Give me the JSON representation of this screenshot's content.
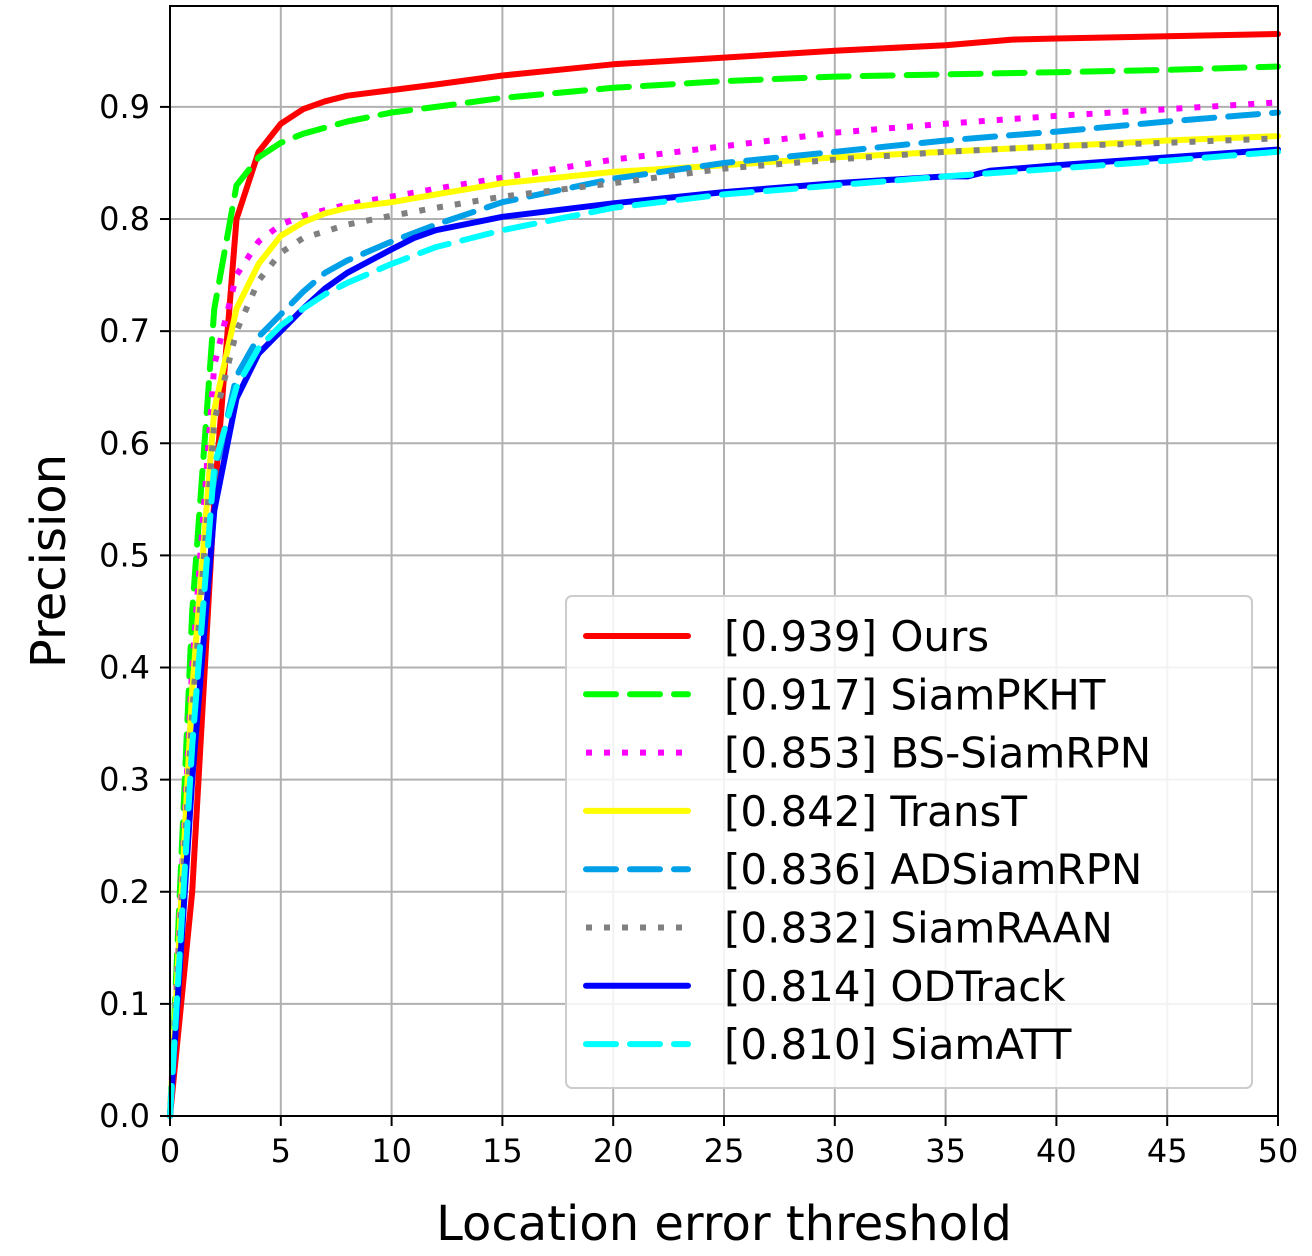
{
  "chart_data": {
    "type": "line",
    "title": "",
    "xlabel": "Location error threshold",
    "ylabel": "Precision",
    "xlim": [
      0,
      50
    ],
    "ylim": [
      0,
      0.99
    ],
    "x_ticks": [
      0,
      5,
      10,
      15,
      20,
      25,
      30,
      35,
      40,
      45,
      50
    ],
    "y_ticks": [
      0.0,
      0.1,
      0.2,
      0.3,
      0.4,
      0.5,
      0.6,
      0.7,
      0.8,
      0.9
    ],
    "grid": true,
    "legend_position": "lower-right",
    "series": [
      {
        "name": "[0.939] Ours",
        "color": "#ff0000",
        "style": "solid",
        "x": [
          0,
          1,
          2,
          3,
          4,
          5,
          6,
          7,
          8,
          10,
          12,
          15,
          18,
          20,
          25,
          30,
          35,
          38,
          40,
          45,
          50
        ],
        "y": [
          0.0,
          0.2,
          0.55,
          0.8,
          0.86,
          0.885,
          0.898,
          0.905,
          0.91,
          0.915,
          0.92,
          0.928,
          0.934,
          0.938,
          0.944,
          0.95,
          0.955,
          0.96,
          0.961,
          0.963,
          0.965
        ]
      },
      {
        "name": "[0.917] SiamPKHT",
        "color": "#00ff00",
        "style": "dashed",
        "x": [
          0,
          1,
          2,
          3,
          4,
          5,
          6,
          8,
          10,
          12,
          15,
          20,
          25,
          30,
          35,
          40,
          45,
          50
        ],
        "y": [
          0.0,
          0.45,
          0.72,
          0.83,
          0.855,
          0.868,
          0.876,
          0.887,
          0.895,
          0.9,
          0.908,
          0.917,
          0.923,
          0.927,
          0.929,
          0.931,
          0.933,
          0.936
        ]
      },
      {
        "name": "[0.853] BS-SiamRPN",
        "color": "#ff00ff",
        "style": "dotted",
        "x": [
          0,
          1,
          2,
          3,
          4,
          5,
          6,
          8,
          10,
          12,
          15,
          20,
          25,
          30,
          35,
          40,
          45,
          50
        ],
        "y": [
          0.0,
          0.4,
          0.67,
          0.75,
          0.78,
          0.795,
          0.803,
          0.813,
          0.82,
          0.827,
          0.837,
          0.853,
          0.865,
          0.877,
          0.885,
          0.892,
          0.898,
          0.904
        ]
      },
      {
        "name": "[0.842] TransT",
        "color": "#ffff00",
        "style": "solid",
        "x": [
          0,
          1,
          2,
          3,
          4,
          5,
          6,
          7,
          8,
          10,
          12,
          15,
          20,
          25,
          30,
          35,
          40,
          45,
          50
        ],
        "y": [
          0.0,
          0.38,
          0.63,
          0.72,
          0.76,
          0.785,
          0.797,
          0.805,
          0.81,
          0.815,
          0.822,
          0.832,
          0.842,
          0.848,
          0.855,
          0.86,
          0.865,
          0.87,
          0.874
        ]
      },
      {
        "name": "[0.836] ADSiamRPN",
        "color": "#00a0e8",
        "style": "dashed",
        "x": [
          0,
          1,
          2,
          3,
          4,
          5,
          6,
          7,
          8,
          10,
          12,
          15,
          20,
          25,
          30,
          35,
          40,
          45,
          50
        ],
        "y": [
          0.0,
          0.32,
          0.57,
          0.66,
          0.695,
          0.715,
          0.735,
          0.752,
          0.763,
          0.78,
          0.795,
          0.815,
          0.836,
          0.85,
          0.86,
          0.87,
          0.878,
          0.887,
          0.895
        ]
      },
      {
        "name": "[0.832] SiamRAAN",
        "color": "#808080",
        "style": "dotted",
        "x": [
          0,
          1,
          2,
          3,
          4,
          5,
          6,
          8,
          10,
          12,
          15,
          20,
          25,
          30,
          35,
          40,
          45,
          50
        ],
        "y": [
          0.0,
          0.36,
          0.62,
          0.7,
          0.745,
          0.77,
          0.783,
          0.795,
          0.803,
          0.81,
          0.82,
          0.832,
          0.845,
          0.853,
          0.86,
          0.865,
          0.868,
          0.872
        ]
      },
      {
        "name": "[0.814] ODTrack",
        "color": "#0000ff",
        "style": "solid",
        "x": [
          0,
          1,
          2,
          3,
          4,
          5,
          6,
          7,
          8,
          10,
          11,
          12,
          14,
          15,
          20,
          25,
          30,
          35,
          36,
          37,
          40,
          45,
          50
        ],
        "y": [
          0.0,
          0.3,
          0.54,
          0.64,
          0.68,
          0.7,
          0.72,
          0.738,
          0.752,
          0.773,
          0.783,
          0.79,
          0.798,
          0.802,
          0.814,
          0.824,
          0.832,
          0.838,
          0.838,
          0.843,
          0.848,
          0.855,
          0.862
        ]
      },
      {
        "name": "[0.810] SiamATT",
        "color": "#00ffff",
        "style": "dashed",
        "x": [
          0,
          1,
          2,
          3,
          4,
          5,
          6,
          7,
          8,
          10,
          12,
          15,
          20,
          25,
          30,
          35,
          40,
          45,
          50
        ],
        "y": [
          0.0,
          0.33,
          0.58,
          0.65,
          0.685,
          0.705,
          0.72,
          0.733,
          0.743,
          0.76,
          0.775,
          0.79,
          0.81,
          0.822,
          0.83,
          0.838,
          0.845,
          0.852,
          0.86
        ]
      }
    ]
  }
}
